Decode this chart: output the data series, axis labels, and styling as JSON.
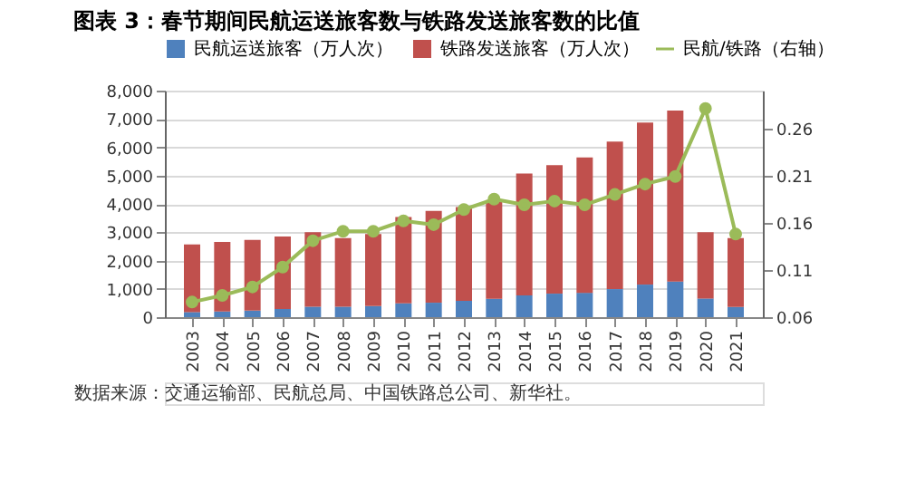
{
  "chart_data": {
    "type": "bar",
    "title": "图表 3：春节期间民航运送旅客数与铁路发送旅客数的比值",
    "categories": [
      "2003",
      "2004",
      "2005",
      "2006",
      "2007",
      "2008",
      "2009",
      "2010",
      "2011",
      "2012",
      "2013",
      "2014",
      "2015",
      "2016",
      "2017",
      "2018",
      "2019",
      "2020",
      "2021"
    ],
    "stacked": true,
    "series": [
      {
        "name": "民航运送旅客（万人次）",
        "color": "#4f81bd",
        "values": [
          180,
          200,
          230,
          290,
          370,
          370,
          390,
          490,
          510,
          580,
          650,
          770,
          830,
          860,
          990,
          1150,
          1260,
          660,
          360
        ]
      },
      {
        "name": "铁路发送旅客（万人次）",
        "color": "#c0504d",
        "values": [
          2390,
          2460,
          2500,
          2560,
          2630,
          2420,
          2550,
          3050,
          3240,
          3310,
          3490,
          4300,
          4540,
          4780,
          5210,
          5720,
          6040,
          2340,
          2430
        ]
      },
      {
        "name": "民航/铁路（右轴）",
        "color": "#9bbb59",
        "type": "line",
        "axis": "y2",
        "marker": "circle",
        "values": [
          0.076,
          0.083,
          0.092,
          0.113,
          0.141,
          0.151,
          0.151,
          0.162,
          0.158,
          0.174,
          0.185,
          0.179,
          0.183,
          0.179,
          0.19,
          0.201,
          0.209,
          0.281,
          0.148
        ]
      }
    ],
    "ylim": [
      0,
      8000
    ],
    "yticks": [
      0,
      {
        "value": 1000,
        "label": "1,000"
      },
      {
        "value": 2000,
        "label": "2,000"
      },
      {
        "value": 3000,
        "label": "3,000"
      },
      {
        "value": 4000,
        "label": "4,000"
      },
      {
        "value": 5000,
        "label": "5,000"
      },
      {
        "value": 6000,
        "label": "6,000"
      },
      {
        "value": 7000,
        "label": "7,000"
      },
      {
        "value": 8000,
        "label": "8,000"
      }
    ],
    "y2lim": [
      0.06,
      0.3
    ],
    "y2ticks": [
      0.06,
      0.11,
      0.16,
      0.21,
      0.26
    ],
    "grid": "y",
    "legend": "top",
    "annotations": [
      "数据来源：交通运输部、民航总局、中国铁路总公司、新华社。"
    ]
  }
}
